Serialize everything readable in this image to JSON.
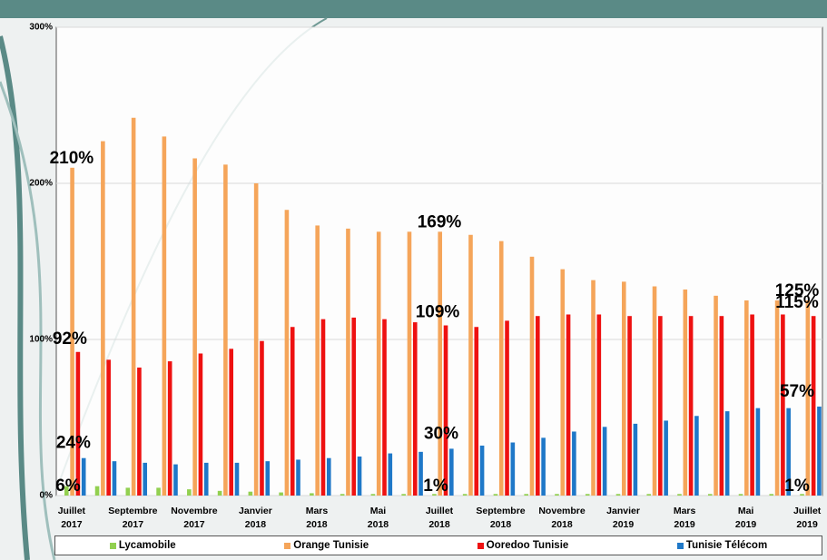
{
  "chart_data": {
    "type": "bar",
    "categories": [
      "Juillet 2017",
      null,
      "Septembre 2017",
      null,
      "Novembre 2017",
      null,
      "Janvier 2018",
      null,
      "Mars 2018",
      null,
      "Mai 2018",
      null,
      "Juillet 2018",
      null,
      "Septembre 2018",
      null,
      "Novembre 2018",
      null,
      "Janvier 2019",
      null,
      "Mars 2019",
      null,
      "Mai 2019",
      null,
      "Juillet 2019"
    ],
    "series": [
      {
        "name": "Lycamobile",
        "color": "#92d050",
        "values": [
          6,
          6,
          5,
          5,
          4,
          3,
          2.5,
          2,
          1.5,
          1,
          1,
          1,
          1,
          1,
          1,
          1,
          1,
          1,
          1,
          1,
          1,
          1,
          1,
          1,
          1
        ],
        "value_labels": [
          "6%",
          null,
          null,
          null,
          null,
          null,
          null,
          null,
          null,
          null,
          null,
          null,
          "1%",
          null,
          null,
          null,
          null,
          null,
          null,
          null,
          null,
          null,
          null,
          null,
          "1%"
        ]
      },
      {
        "name": "Orange Tunisie",
        "color": "#f5a55a",
        "values": [
          210,
          227,
          242,
          230,
          216,
          212,
          200,
          183,
          173,
          171,
          169,
          169,
          169,
          167,
          163,
          153,
          145,
          138,
          137,
          134,
          132,
          128,
          125,
          125,
          125
        ],
        "value_labels": [
          "210%",
          null,
          null,
          null,
          null,
          null,
          null,
          null,
          null,
          null,
          null,
          null,
          "169%",
          null,
          null,
          null,
          null,
          null,
          null,
          null,
          null,
          null,
          null,
          null,
          "125%"
        ]
      },
      {
        "name": "Ooredoo Tunisie",
        "color": "#ee1111",
        "values": [
          92,
          87,
          82,
          86,
          91,
          94,
          99,
          108,
          113,
          114,
          113,
          111,
          109,
          108,
          112,
          115,
          116,
          116,
          115,
          115,
          115,
          115,
          116,
          116,
          115
        ],
        "value_labels": [
          "92%",
          null,
          null,
          null,
          null,
          null,
          null,
          null,
          null,
          null,
          null,
          null,
          "109%",
          null,
          null,
          null,
          null,
          null,
          null,
          null,
          null,
          null,
          null,
          null,
          "115%"
        ]
      },
      {
        "name": "Tunisie Télécom",
        "color": "#1f78c8",
        "values": [
          24,
          22,
          21,
          20,
          21,
          21,
          22,
          23,
          24,
          25,
          27,
          28,
          30,
          32,
          34,
          37,
          41,
          44,
          46,
          48,
          51,
          54,
          56,
          56,
          57
        ],
        "value_labels": [
          "24%",
          null,
          null,
          null,
          null,
          null,
          null,
          null,
          null,
          null,
          null,
          null,
          "30%",
          null,
          null,
          null,
          null,
          null,
          null,
          null,
          null,
          null,
          null,
          null,
          "57%"
        ]
      }
    ],
    "ylim": [
      0,
      300
    ],
    "yticks": [
      {
        "value": 0,
        "label": "0%"
      },
      {
        "value": 100,
        "label": "100%"
      },
      {
        "value": 200,
        "label": "200%"
      },
      {
        "value": 300,
        "label": "300%"
      }
    ],
    "grid": true
  }
}
